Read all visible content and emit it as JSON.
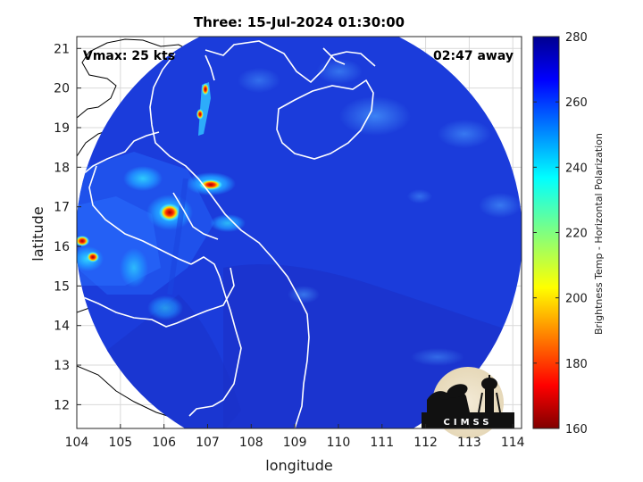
{
  "title": "Three: 15-Jul-2024 01:30:00",
  "annotations": {
    "vmax": "Vmax: 25 kts",
    "away": "02:47 away"
  },
  "axes": {
    "xlabel": "longitude",
    "ylabel": "latitude",
    "x_ticks": [
      "104",
      "105",
      "106",
      "107",
      "108",
      "109",
      "110",
      "111",
      "112",
      "113",
      "114"
    ],
    "y_ticks": [
      "21",
      "20",
      "19",
      "18",
      "17",
      "16",
      "15",
      "14",
      "13",
      "12"
    ],
    "x_range": [
      104,
      114.2
    ],
    "y_range": [
      11.4,
      21.3
    ]
  },
  "colorbar": {
    "label": "Brightness Temp - Horizontal Polarization",
    "ticks": [
      "280",
      "260",
      "240",
      "220",
      "200",
      "180",
      "160"
    ],
    "range": [
      160,
      280
    ],
    "colormap": "jet"
  },
  "logo": {
    "text": "CIMSS"
  },
  "colors": {
    "background_field": "#1d38d8",
    "deep_field": "#1a2ac0",
    "coastline": "#ffffff",
    "warm_core": "#b00000"
  }
}
